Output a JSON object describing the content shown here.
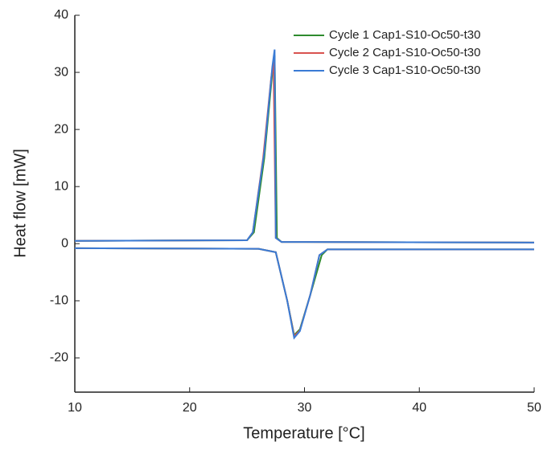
{
  "chart_data": {
    "type": "line",
    "xlabel": "Temperature [°C]",
    "ylabel": "Heat flow [mW]",
    "xlim": [
      10,
      50
    ],
    "xticks": [
      10,
      20,
      30,
      40,
      50
    ],
    "ylim": [
      -26,
      40
    ],
    "yticks": [
      -20,
      -10,
      0,
      10,
      20,
      30,
      40
    ],
    "legend": "upper-right",
    "series": [
      {
        "name": "Cycle 1 Cap1-S10-Oc50-t30",
        "color": "#2e8b2e",
        "x": [
          10,
          25,
          25.6,
          26.5,
          27.2,
          27.4,
          27.6,
          28,
          50,
          null,
          10,
          26,
          27.5,
          28.5,
          29.1,
          29.6,
          30.5,
          31.5,
          32,
          50
        ],
        "values": [
          0.5,
          0.6,
          2,
          15,
          30,
          33,
          1,
          0.3,
          0.2,
          null,
          -0.8,
          -0.9,
          -1.5,
          -10,
          -16,
          -15,
          -9,
          -2,
          -1,
          -1
        ]
      },
      {
        "name": "Cycle 2 Cap1-S10-Oc50-t30",
        "color": "#d9534f",
        "x": [
          10,
          25,
          25.5,
          26.4,
          27.1,
          27.3,
          27.5,
          28,
          50,
          null,
          10,
          26,
          27.5,
          28.5,
          29.1,
          29.6,
          30.5,
          31.3,
          32,
          50
        ],
        "values": [
          0.5,
          0.6,
          2,
          15,
          29,
          32,
          1,
          0.3,
          0.2,
          null,
          -0.8,
          -0.9,
          -1.5,
          -10,
          -16.2,
          -15.2,
          -9,
          -2,
          -1,
          -1
        ]
      },
      {
        "name": "Cycle 3 Cap1-S10-Oc50-t30",
        "color": "#3a7bd5",
        "x": [
          10,
          25,
          25.5,
          26.5,
          27.2,
          27.4,
          27.5,
          28,
          50,
          null,
          10,
          26,
          27.5,
          28.5,
          29.1,
          29.6,
          30.5,
          31.3,
          32,
          50
        ],
        "values": [
          0.5,
          0.6,
          2,
          16,
          31,
          34,
          1,
          0.3,
          0.2,
          null,
          -0.8,
          -0.9,
          -1.5,
          -10,
          -16.5,
          -15.3,
          -9,
          -2,
          -1,
          -1
        ]
      }
    ]
  }
}
